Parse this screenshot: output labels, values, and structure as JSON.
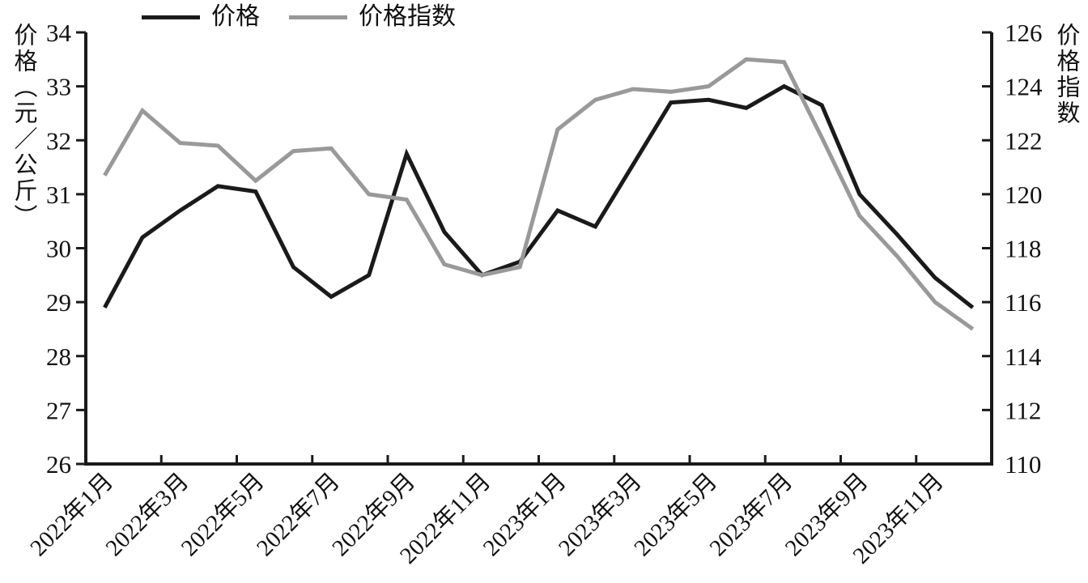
{
  "chart_data": {
    "type": "line",
    "title": "",
    "categories": [
      "2022年1月",
      "2022年2月",
      "2022年3月",
      "2022年4月",
      "2022年5月",
      "2022年6月",
      "2022年7月",
      "2022年8月",
      "2022年9月",
      "2022年10月",
      "2022年11月",
      "2022年12月",
      "2023年1月",
      "2023年2月",
      "2023年3月",
      "2023年4月",
      "2023年5月",
      "2023年6月",
      "2023年7月",
      "2023年8月",
      "2023年9月",
      "2023年10月",
      "2023年11月",
      "2023年12月"
    ],
    "x_tick_labels": [
      "2022年1月",
      "2022年3月",
      "2022年5月",
      "2022年7月",
      "2022年9月",
      "2022年11月",
      "2023年1月",
      "2023年3月",
      "2023年5月",
      "2023年7月",
      "2023年9月",
      "2023年11月"
    ],
    "series": [
      {
        "name": "价格",
        "axis": "left",
        "color": "#1a1a1a",
        "values": [
          28.9,
          30.2,
          30.7,
          31.15,
          31.05,
          29.65,
          29.1,
          29.5,
          31.75,
          30.3,
          29.5,
          29.75,
          30.7,
          30.4,
          31.55,
          32.7,
          32.75,
          32.6,
          33.0,
          32.65,
          31.0,
          30.25,
          29.45,
          28.9
        ]
      },
      {
        "name": "价格指数",
        "axis": "right",
        "color": "#999999",
        "values": [
          120.7,
          123.1,
          121.9,
          121.8,
          120.5,
          121.6,
          121.7,
          120.0,
          119.8,
          117.4,
          117.0,
          117.3,
          122.4,
          123.5,
          123.9,
          123.8,
          124.0,
          125.0,
          124.9,
          122.1,
          119.2,
          117.7,
          116.0,
          115.0
        ]
      }
    ],
    "left_axis": {
      "label": "价格（元／公斤）",
      "min": 26,
      "max": 34,
      "step": 1
    },
    "right_axis": {
      "label": "价格指数",
      "min": 110,
      "max": 126,
      "step": 2
    },
    "legend_position": "top",
    "grid": "off"
  }
}
